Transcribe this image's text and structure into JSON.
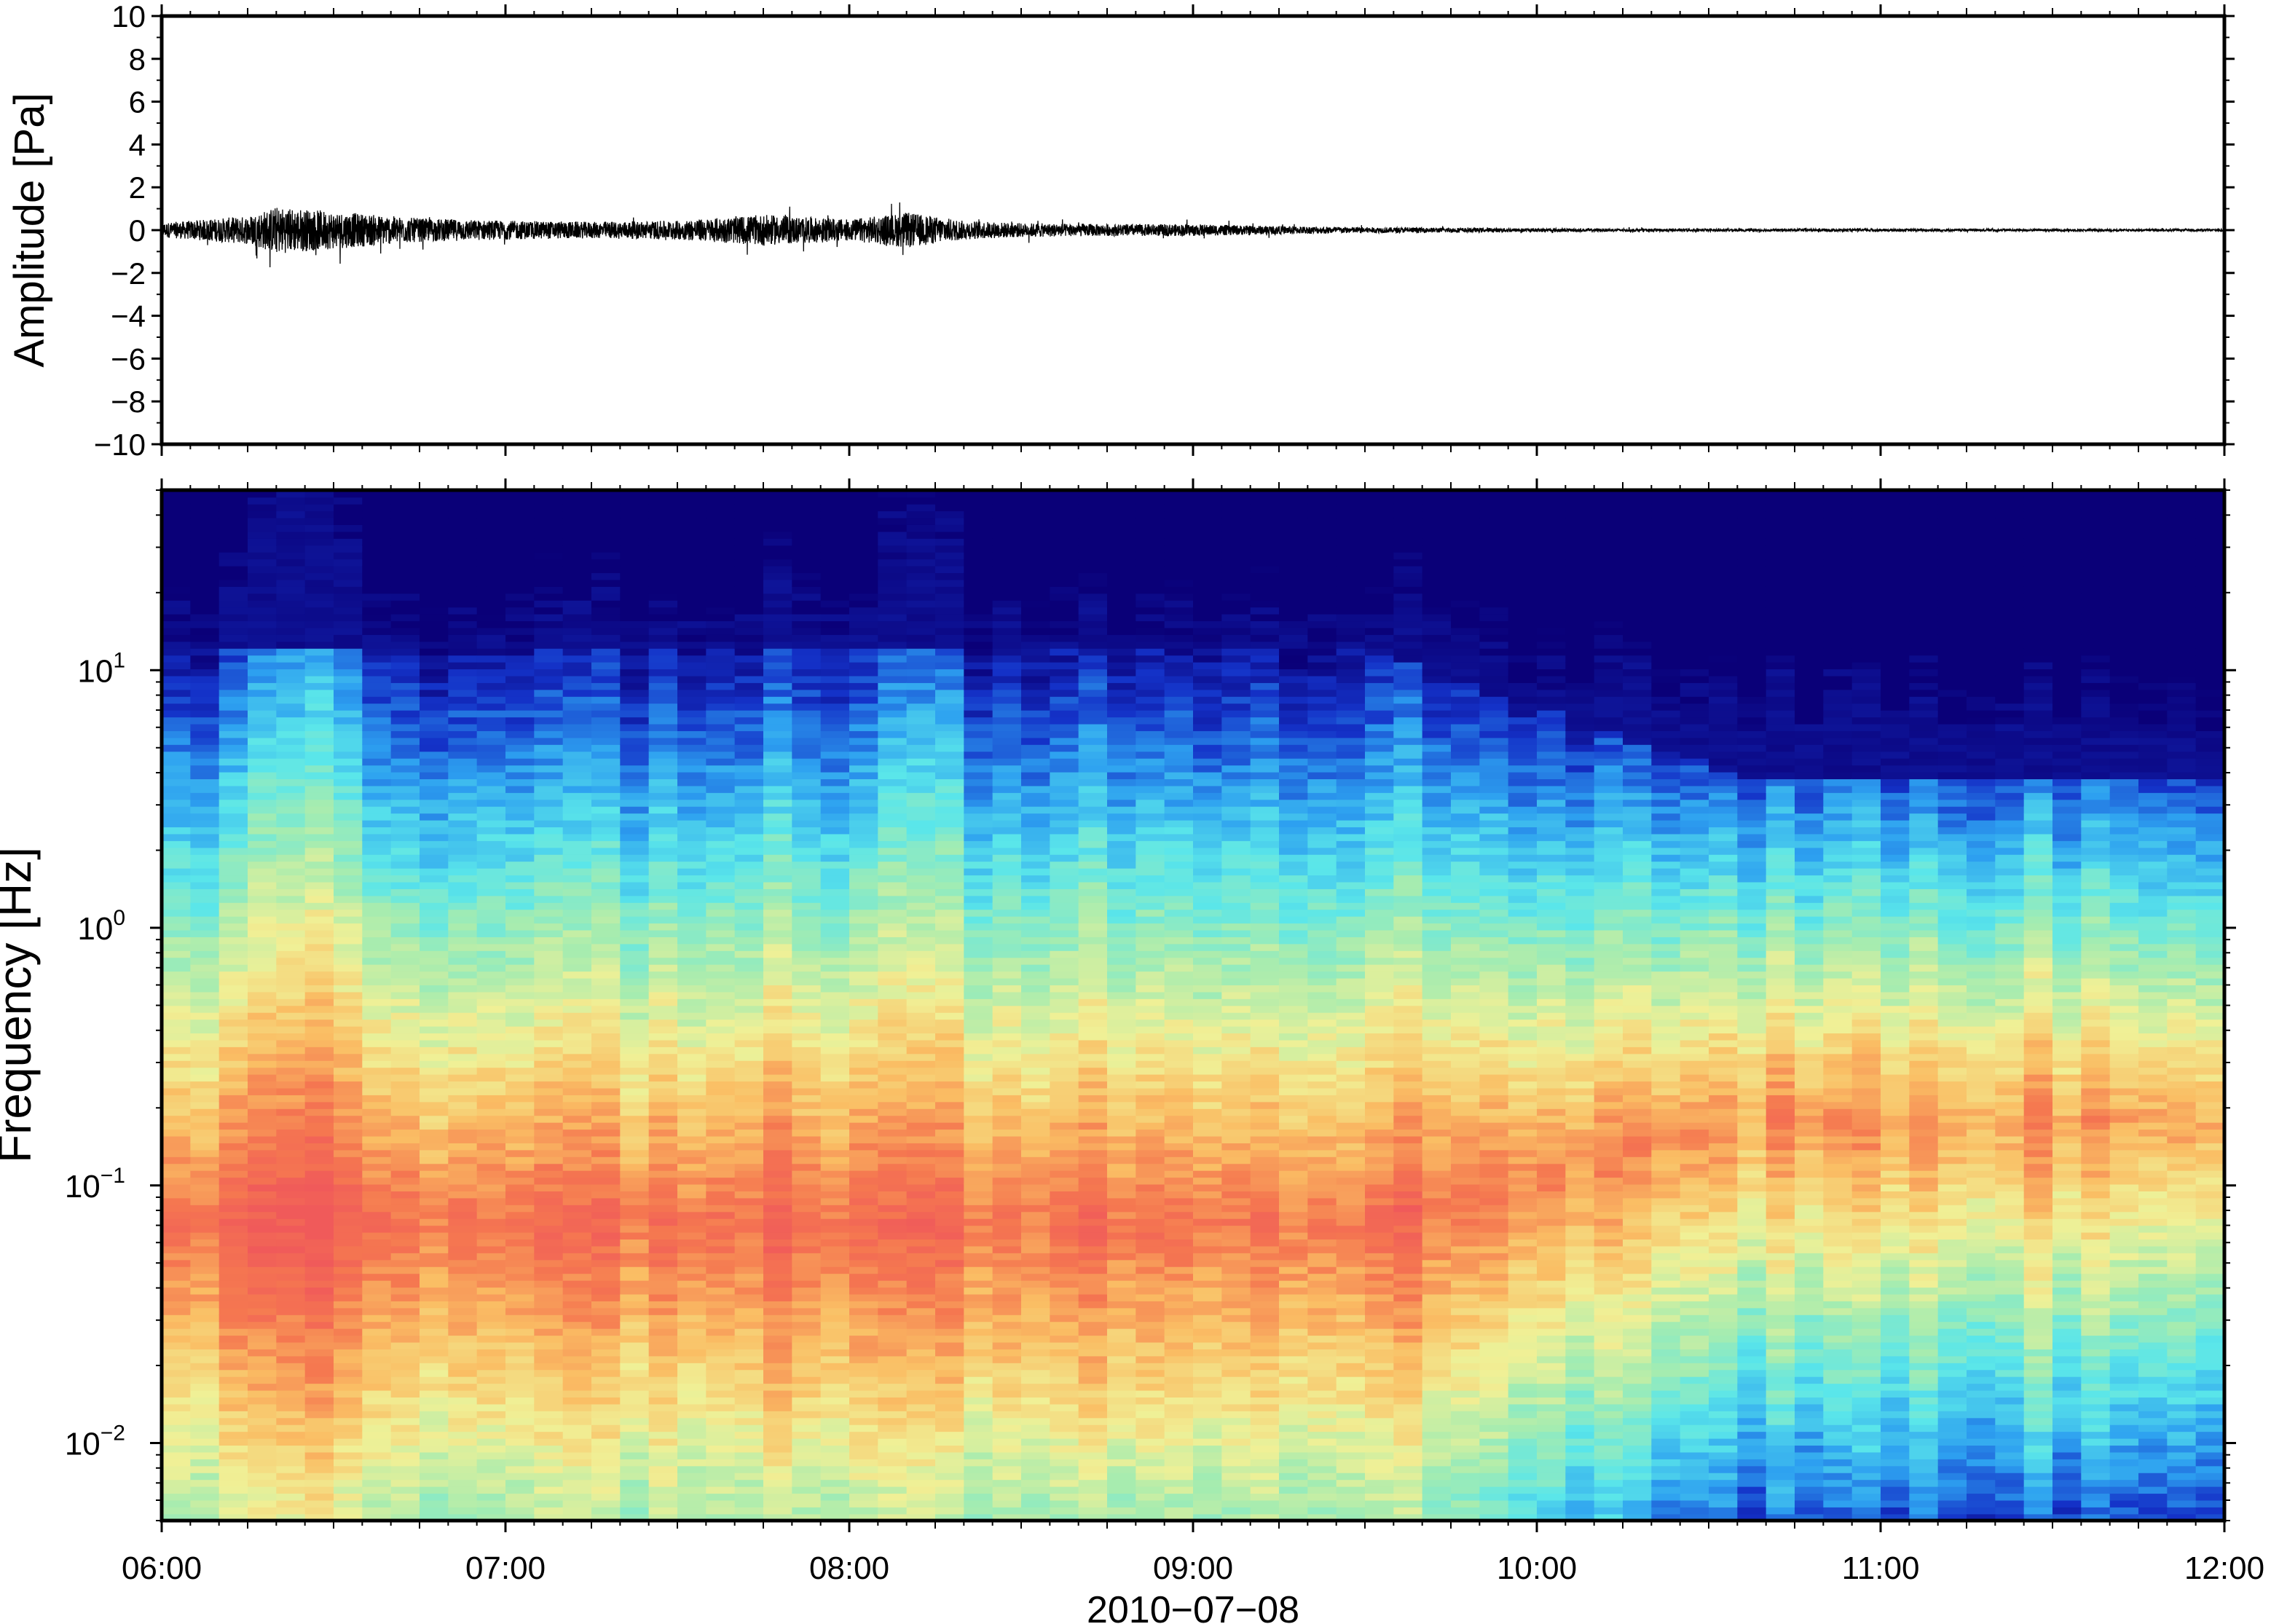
{
  "chart_data": [
    {
      "type": "line",
      "ylabel": "Amplitude [Pa]",
      "ylim": [
        -10,
        10
      ],
      "yticks": [
        "10",
        "8",
        "6",
        "4",
        "2",
        "0",
        "−2",
        "−4",
        "−6",
        "−8",
        "−10"
      ],
      "xlim": [
        "06:00",
        "12:00"
      ],
      "series": [
        {
          "time": [
            "06:00",
            "06:15",
            "06:20",
            "06:30",
            "06:45",
            "07:00",
            "07:15",
            "07:30",
            "07:45",
            "08:00",
            "08:10",
            "08:20",
            "08:30",
            "08:45",
            "09:00",
            "09:15",
            "09:30",
            "10:00",
            "10:30",
            "11:00",
            "11:30",
            "12:00"
          ],
          "envelope": [
            0.6,
            1.2,
            2.0,
            1.6,
            1.0,
            0.8,
            0.7,
            0.8,
            1.3,
            0.9,
            1.5,
            0.8,
            0.6,
            0.5,
            0.5,
            0.35,
            0.25,
            0.15,
            0.12,
            0.12,
            0.1,
            0.1
          ]
        }
      ],
      "grid": false
    },
    {
      "type": "heatmap",
      "ylabel": "Frequency [Hz]",
      "yscale": "log",
      "ylim": [
        0.005,
        50
      ],
      "yticks": [
        {
          "value": 10,
          "base": "10",
          "exp": "1"
        },
        {
          "value": 1,
          "base": "10",
          "exp": "0"
        },
        {
          "value": 0.1,
          "base": "10",
          "exp": "−1"
        },
        {
          "value": 0.01,
          "base": "10",
          "exp": "−2"
        }
      ],
      "xlabel": "2010−07−08",
      "xticks": [
        "06:00",
        "07:00",
        "08:00",
        "09:00",
        "10:00",
        "11:00",
        "12:00"
      ],
      "xlim": [
        "06:00",
        "12:00"
      ],
      "colormap": [
        "#0a0078",
        "#1432c8",
        "#2da0f0",
        "#5ae6ea",
        "#a5ecb0",
        "#f0f096",
        "#fabe64",
        "#f57850",
        "#f05a5a"
      ],
      "grid": false
    }
  ]
}
